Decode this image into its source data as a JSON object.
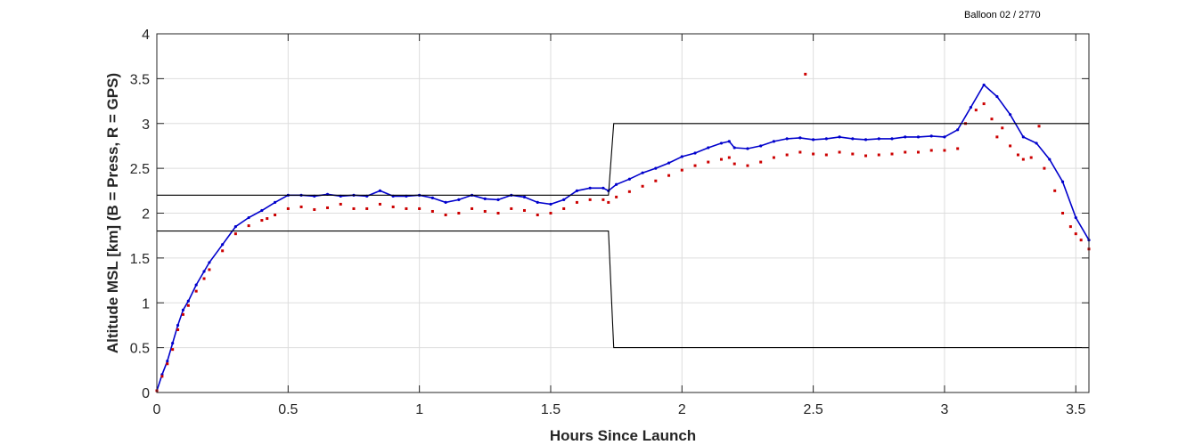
{
  "chart_data": {
    "type": "line",
    "annotation": "Balloon 02 / 2770",
    "xlabel": "Hours Since Launch",
    "ylabel": "Altitude MSL [km]   (B = Press, R = GPS)",
    "xlim": [
      0,
      3.55
    ],
    "ylim": [
      0,
      4
    ],
    "x_ticks": [
      0,
      0.5,
      1,
      1.5,
      2,
      2.5,
      3,
      3.5
    ],
    "x_tick_labels": [
      "0",
      "0.5",
      "1",
      "1.5",
      "2",
      "2.5",
      "3",
      "3.5"
    ],
    "y_ticks": [
      0,
      0.5,
      1,
      1.5,
      2,
      2.5,
      3,
      3.5,
      4
    ],
    "y_tick_labels": [
      "0",
      "0.5",
      "1",
      "1.5",
      "2",
      "2.5",
      "3",
      "3.5",
      "4"
    ],
    "grid": true,
    "colors": {
      "press": "#0000cc",
      "gps": "#cc0000",
      "bounds": "#000000",
      "grid": "#dddddd",
      "axes": "#262626"
    },
    "series": [
      {
        "key": "press",
        "style": "line",
        "x": [
          0,
          0.02,
          0.04,
          0.06,
          0.08,
          0.1,
          0.12,
          0.15,
          0.18,
          0.2,
          0.25,
          0.3,
          0.35,
          0.4,
          0.45,
          0.5,
          0.55,
          0.6,
          0.65,
          0.7,
          0.75,
          0.8,
          0.85,
          0.9,
          0.95,
          1.0,
          1.05,
          1.1,
          1.15,
          1.2,
          1.25,
          1.3,
          1.35,
          1.4,
          1.45,
          1.5,
          1.55,
          1.6,
          1.65,
          1.7,
          1.72,
          1.75,
          1.8,
          1.85,
          1.9,
          1.95,
          2.0,
          2.05,
          2.1,
          2.15,
          2.18,
          2.2,
          2.25,
          2.3,
          2.35,
          2.4,
          2.45,
          2.5,
          2.55,
          2.6,
          2.65,
          2.7,
          2.75,
          2.8,
          2.85,
          2.9,
          2.95,
          3.0,
          3.05,
          3.1,
          3.15,
          3.2,
          3.25,
          3.3,
          3.35,
          3.4,
          3.45,
          3.5,
          3.55
        ],
        "y": [
          0.02,
          0.2,
          0.35,
          0.55,
          0.75,
          0.92,
          1.02,
          1.2,
          1.35,
          1.45,
          1.65,
          1.85,
          1.95,
          2.03,
          2.12,
          2.2,
          2.2,
          2.19,
          2.21,
          2.19,
          2.2,
          2.19,
          2.25,
          2.19,
          2.19,
          2.2,
          2.17,
          2.12,
          2.15,
          2.2,
          2.16,
          2.15,
          2.2,
          2.18,
          2.12,
          2.1,
          2.15,
          2.25,
          2.28,
          2.28,
          2.25,
          2.32,
          2.38,
          2.45,
          2.5,
          2.56,
          2.63,
          2.67,
          2.73,
          2.78,
          2.8,
          2.73,
          2.72,
          2.75,
          2.8,
          2.83,
          2.84,
          2.82,
          2.83,
          2.85,
          2.83,
          2.82,
          2.83,
          2.83,
          2.85,
          2.85,
          2.86,
          2.85,
          2.93,
          3.18,
          3.43,
          3.3,
          3.1,
          2.85,
          2.78,
          2.6,
          2.35,
          1.95,
          1.7
        ]
      },
      {
        "key": "gps",
        "style": "dots",
        "x": [
          0,
          0.02,
          0.04,
          0.06,
          0.08,
          0.1,
          0.12,
          0.15,
          0.18,
          0.2,
          0.25,
          0.3,
          0.35,
          0.4,
          0.42,
          0.45,
          0.5,
          0.55,
          0.6,
          0.65,
          0.7,
          0.75,
          0.8,
          0.85,
          0.9,
          0.95,
          1.0,
          1.05,
          1.1,
          1.15,
          1.2,
          1.25,
          1.3,
          1.35,
          1.4,
          1.45,
          1.5,
          1.55,
          1.6,
          1.65,
          1.7,
          1.72,
          1.75,
          1.8,
          1.85,
          1.9,
          1.95,
          2.0,
          2.05,
          2.1,
          2.15,
          2.18,
          2.2,
          2.25,
          2.3,
          2.35,
          2.4,
          2.45,
          2.47,
          2.5,
          2.55,
          2.6,
          2.65,
          2.7,
          2.75,
          2.8,
          2.85,
          2.9,
          2.95,
          3.0,
          3.05,
          3.08,
          3.12,
          3.15,
          3.18,
          3.2,
          3.22,
          3.25,
          3.28,
          3.3,
          3.33,
          3.36,
          3.38,
          3.42,
          3.45,
          3.48,
          3.5,
          3.52,
          3.55
        ],
        "y": [
          0.02,
          0.18,
          0.32,
          0.48,
          0.7,
          0.87,
          0.97,
          1.13,
          1.27,
          1.37,
          1.58,
          1.77,
          1.86,
          1.92,
          1.94,
          1.98,
          2.05,
          2.07,
          2.04,
          2.06,
          2.1,
          2.05,
          2.05,
          2.1,
          2.07,
          2.05,
          2.05,
          2.02,
          1.98,
          2.0,
          2.05,
          2.02,
          2.0,
          2.05,
          2.03,
          1.98,
          2.0,
          2.05,
          2.12,
          2.15,
          2.15,
          2.12,
          2.18,
          2.24,
          2.3,
          2.36,
          2.42,
          2.48,
          2.53,
          2.57,
          2.6,
          2.62,
          2.55,
          2.53,
          2.57,
          2.62,
          2.65,
          2.68,
          3.55,
          2.66,
          2.65,
          2.68,
          2.66,
          2.64,
          2.65,
          2.66,
          2.68,
          2.68,
          2.7,
          2.7,
          2.72,
          3.0,
          3.15,
          3.22,
          3.05,
          2.85,
          2.95,
          2.75,
          2.65,
          2.6,
          2.62,
          2.97,
          2.5,
          2.25,
          2.0,
          1.85,
          1.77,
          1.7,
          1.6
        ]
      },
      {
        "key": "upper-bound",
        "style": "line",
        "x": [
          0,
          1.72,
          1.74,
          3.55
        ],
        "y": [
          2.2,
          2.2,
          3.0,
          3.0
        ]
      },
      {
        "key": "lower-bound",
        "style": "line",
        "x": [
          0,
          1.72,
          1.74,
          3.55
        ],
        "y": [
          1.8,
          1.8,
          0.5,
          0.5
        ]
      }
    ]
  }
}
